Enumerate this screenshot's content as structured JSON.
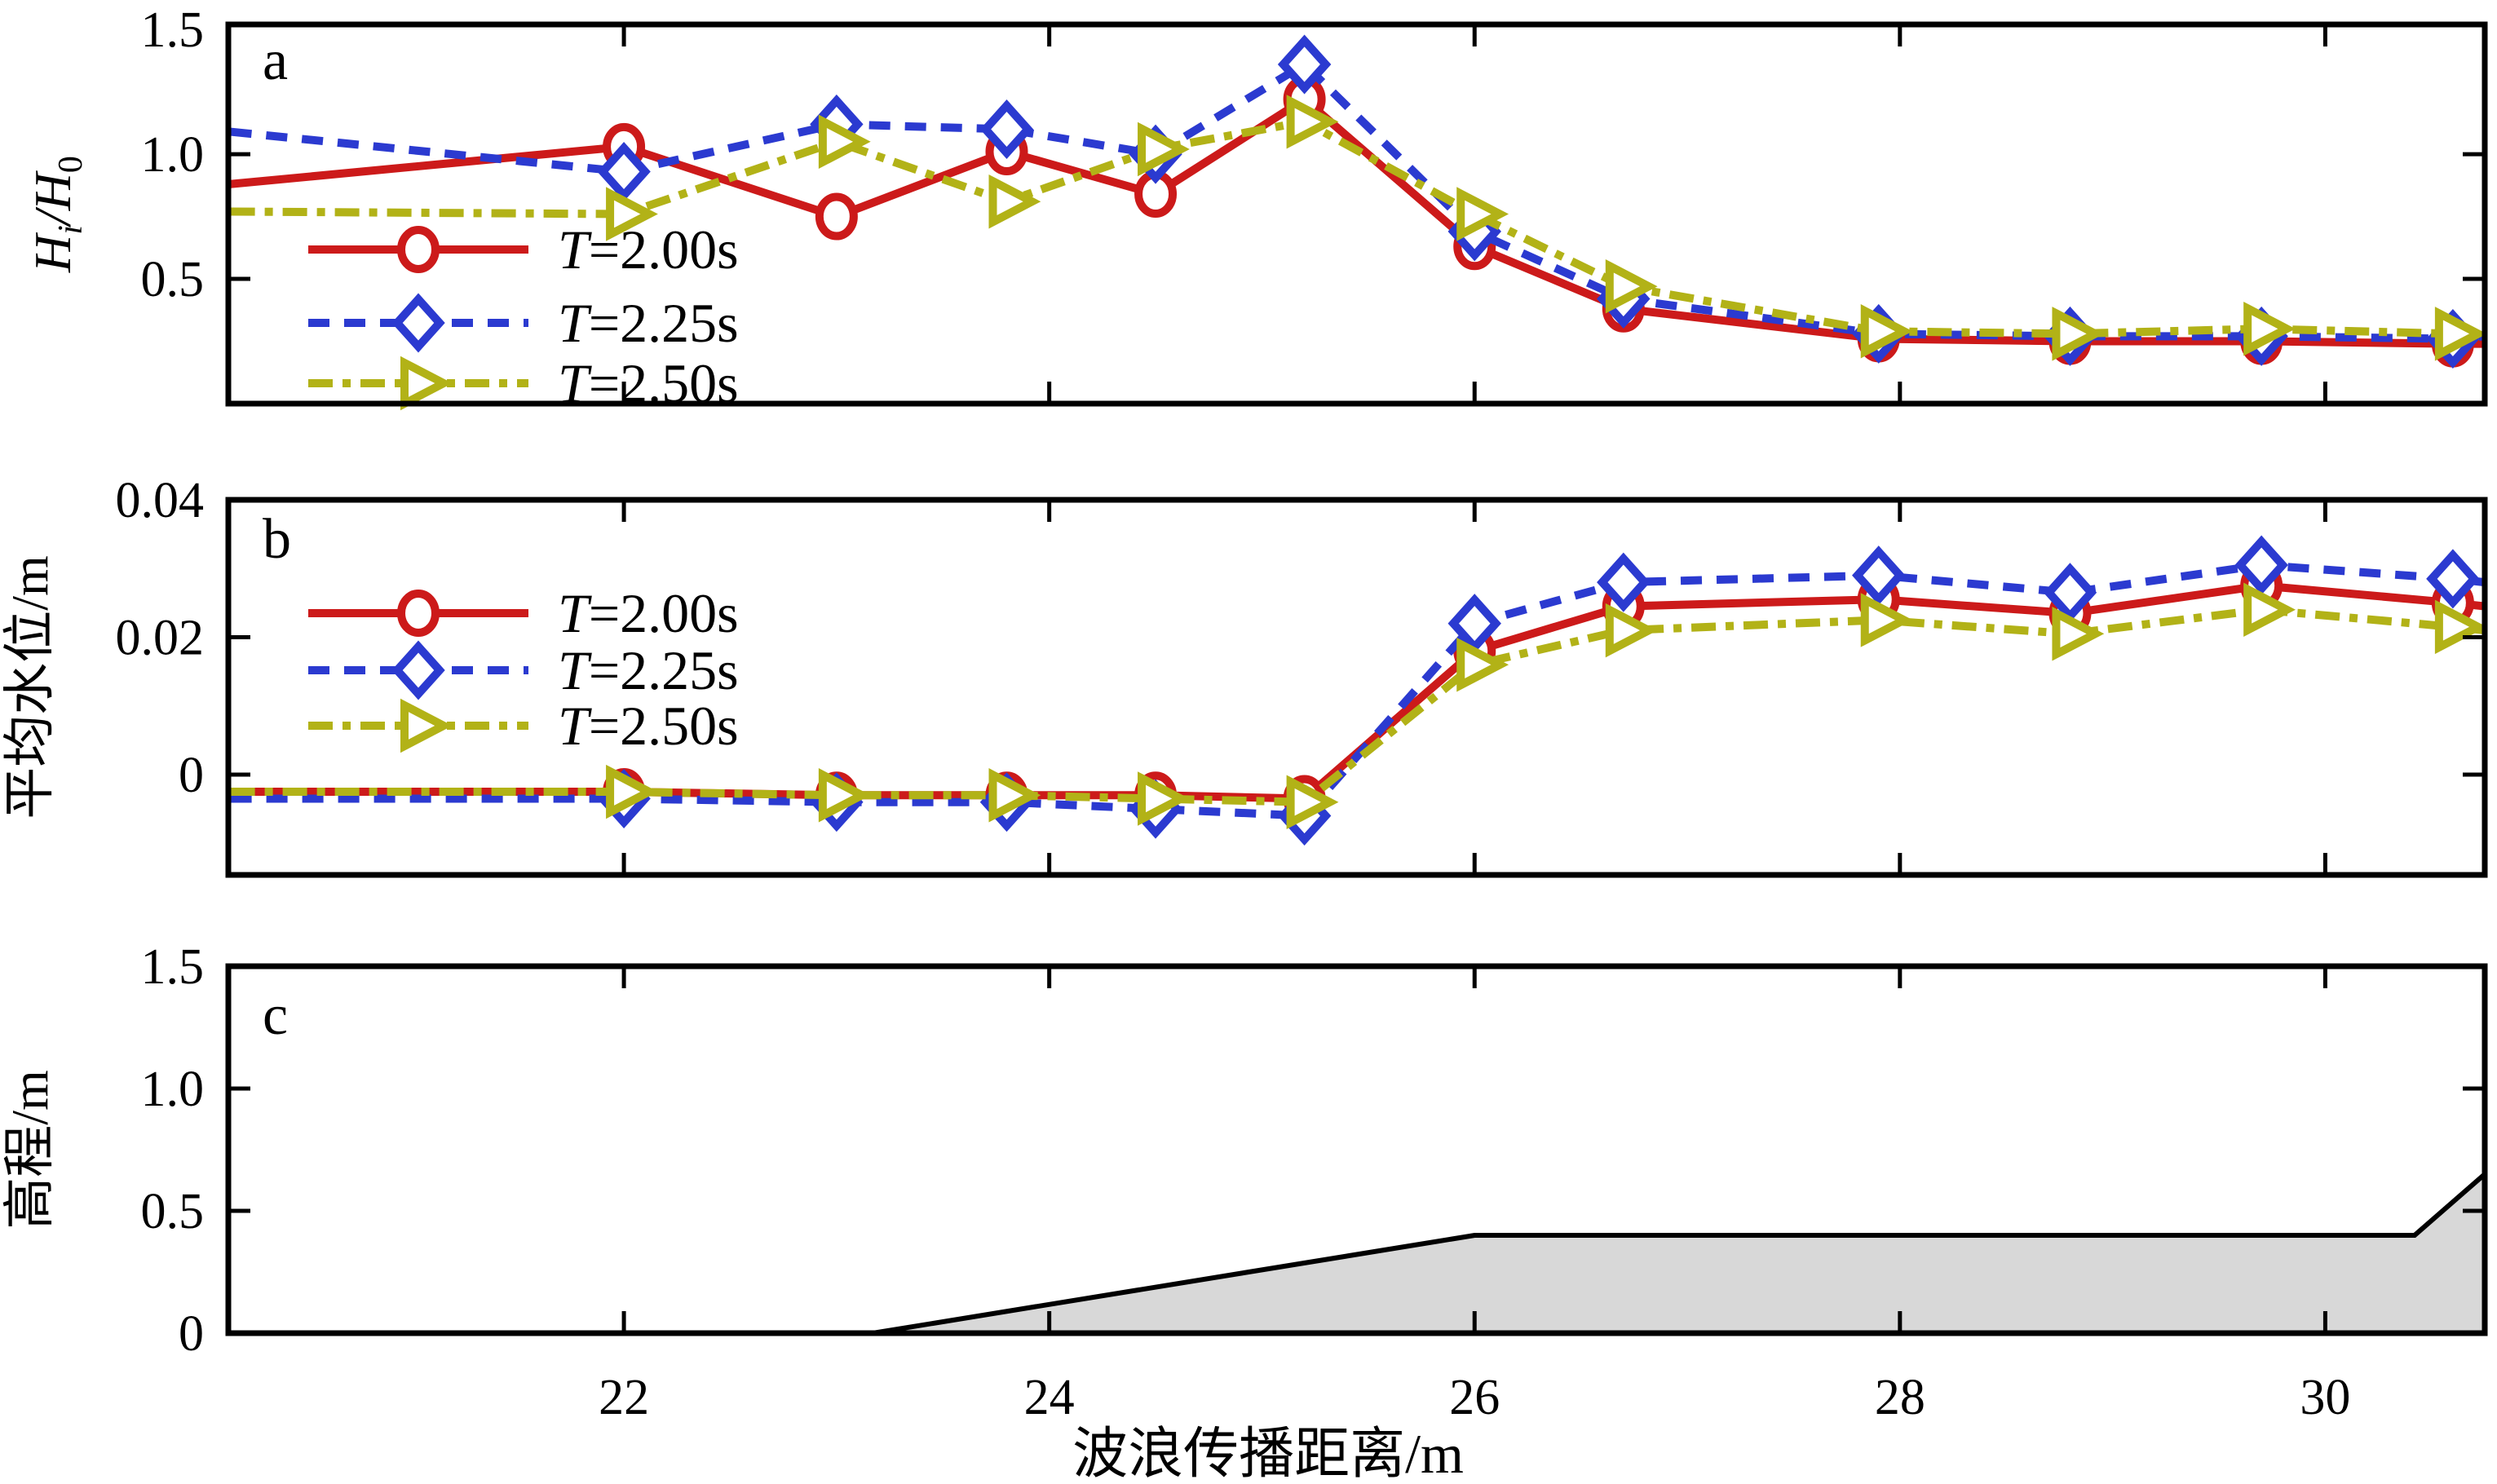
{
  "figure": {
    "xlabel": "波浪传播距离/m",
    "x_tick_labels": [
      "22",
      "24",
      "26",
      "28",
      "30"
    ],
    "x_tick_values": [
      22,
      24,
      26,
      28,
      30
    ],
    "x_range": [
      20.14,
      30.75
    ],
    "background_color": "#ffffff",
    "axis_color": "#000000"
  },
  "legend": {
    "entries": [
      {
        "label": "T=2.00s",
        "color": "#cc1a1a",
        "dash": "solid",
        "marker": "circle"
      },
      {
        "label": "T=2.25s",
        "color": "#2b3ad0",
        "dash": "dashed",
        "marker": "diamond"
      },
      {
        "label": "T=2.50s",
        "color": "#b2b217",
        "dash": "dashdot",
        "marker": "triangle-right"
      }
    ]
  },
  "chart_data": [
    {
      "type": "line",
      "panel": "a",
      "letter": "a",
      "ylabel": "Hi/H0",
      "ylabel_rich": [
        {
          "t": "H",
          "italic": true
        },
        {
          "t": "i",
          "italic": true,
          "sub": true
        },
        {
          "t": "/H",
          "italic": true
        },
        {
          "t": "0",
          "sub": false,
          "sub2": true
        }
      ],
      "ylim": [
        0,
        1.52
      ],
      "yticks": [
        {
          "v": 0.5,
          "label": "0.5",
          "tick": true
        },
        {
          "v": 1.0,
          "label": "1.0",
          "tick": true
        },
        {
          "v": 1.5,
          "label": "1.5",
          "tick": false
        }
      ],
      "x": [
        20.15,
        22.0,
        23.0,
        23.8,
        24.5,
        25.2,
        26.0,
        26.7,
        27.9,
        28.8,
        29.7,
        30.6,
        30.75
      ],
      "series": [
        {
          "name": "T=2.00s",
          "values": [
            0.88,
            1.03,
            0.75,
            1.01,
            0.84,
            1.22,
            0.63,
            0.38,
            0.26,
            0.25,
            0.25,
            0.24,
            0.24
          ]
        },
        {
          "name": "T=2.25s",
          "values": [
            1.09,
            0.93,
            1.12,
            1.1,
            1.0,
            1.36,
            0.69,
            0.42,
            0.28,
            0.27,
            0.27,
            0.26,
            0.27
          ]
        },
        {
          "name": "T=2.50s",
          "values": [
            0.77,
            0.76,
            1.05,
            0.81,
            1.02,
            1.13,
            0.76,
            0.47,
            0.29,
            0.28,
            0.3,
            0.28,
            0.28
          ]
        }
      ],
      "legend_rows_y": [
        306,
        396,
        470
      ],
      "show_legend": true
    },
    {
      "type": "line",
      "panel": "b",
      "letter": "b",
      "ylabel": "平均水位/m",
      "ylim": [
        -0.0146,
        0.04
      ],
      "yticks": [
        {
          "v": 0,
          "label": "0",
          "tick": true
        },
        {
          "v": 0.02,
          "label": "0.02",
          "tick": true
        },
        {
          "v": 0.04,
          "label": "0.04",
          "tick": false
        }
      ],
      "x": [
        20.15,
        22.0,
        23.0,
        23.8,
        24.5,
        25.2,
        26.0,
        26.7,
        27.9,
        28.8,
        29.7,
        30.6,
        30.75
      ],
      "series": [
        {
          "name": "T=2.00s",
          "values": [
            -0.0025,
            -0.0025,
            -0.003,
            -0.003,
            -0.003,
            -0.0035,
            0.018,
            0.0245,
            0.0255,
            0.0235,
            0.0275,
            0.025,
            0.0245
          ]
        },
        {
          "name": "T=2.25s",
          "values": [
            -0.0035,
            -0.0035,
            -0.004,
            -0.004,
            -0.005,
            -0.006,
            0.022,
            0.028,
            0.029,
            0.0265,
            0.0305,
            0.0285,
            0.028
          ]
        },
        {
          "name": "T=2.50s",
          "values": [
            -0.0025,
            -0.0025,
            -0.003,
            -0.003,
            -0.0035,
            -0.004,
            0.016,
            0.021,
            0.0225,
            0.0205,
            0.024,
            0.0215,
            0.021
          ]
        }
      ],
      "legend_rows_y": [
        752,
        822,
        890
      ],
      "show_legend": true
    },
    {
      "type": "area",
      "panel": "c",
      "letter": "c",
      "ylabel": "高程/m",
      "ylim": [
        0,
        1.5
      ],
      "yticks": [
        {
          "v": 0,
          "label": "0",
          "tick": false
        },
        {
          "v": 0.5,
          "label": "0.5",
          "tick": true
        },
        {
          "v": 1.0,
          "label": "1.0",
          "tick": true
        },
        {
          "v": 1.5,
          "label": "1.5",
          "tick": false
        }
      ],
      "profile": [
        [
          20.14,
          0
        ],
        [
          23.17,
          0
        ],
        [
          26.0,
          0.4
        ],
        [
          30.42,
          0.4
        ],
        [
          30.75,
          0.65
        ]
      ],
      "fill_color": "#d8d8d8",
      "line_color": "#000000",
      "show_legend": false
    }
  ]
}
